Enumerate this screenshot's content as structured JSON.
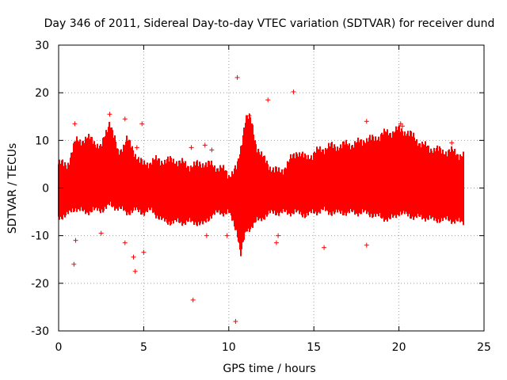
{
  "chart_data": {
    "type": "scatter",
    "title": "Day 346 of 2011, Sidereal Day-to-day VTEC variation (SDTVAR) for receiver dund",
    "xlabel": "GPS time / hours",
    "ylabel": "SDTVAR / TECUs",
    "xlim": [
      0,
      25
    ],
    "ylim": [
      -30,
      30
    ],
    "xticks": [
      "0",
      "5",
      "10",
      "15",
      "20",
      "25"
    ],
    "yticks": [
      "-30",
      "-20",
      "-10",
      "0",
      "10",
      "20",
      "30"
    ],
    "xtick_values": [
      0,
      5,
      10,
      15,
      20,
      25
    ],
    "ytick_values": [
      -30,
      -20,
      -10,
      0,
      10,
      20,
      30
    ],
    "grid": true,
    "marker": "+",
    "color": "#ff0000",
    "envelope": {
      "x": [
        0.0,
        0.5,
        1.0,
        1.5,
        2.0,
        2.5,
        3.0,
        3.5,
        4.0,
        4.5,
        5.0,
        5.5,
        6.0,
        6.5,
        7.0,
        7.5,
        8.0,
        8.5,
        9.0,
        9.5,
        10.0,
        10.5,
        10.7,
        11.0,
        11.3,
        11.6,
        12.0,
        12.5,
        13.0,
        13.5,
        14.0,
        14.5,
        15.0,
        15.5,
        16.0,
        16.5,
        17.0,
        17.5,
        18.0,
        18.5,
        19.0,
        19.5,
        20.0,
        20.5,
        21.0,
        21.5,
        22.0,
        22.5,
        23.0,
        23.5,
        23.8
      ],
      "upper": [
        5,
        4.5,
        9.5,
        10,
        10,
        8,
        14,
        7,
        10,
        7,
        4.5,
        5.5,
        5.5,
        5.5,
        5.5,
        4.5,
        4.5,
        5,
        4.5,
        4,
        2.5,
        4,
        8,
        15,
        14,
        9,
        6,
        4,
        3,
        5,
        7.5,
        6,
        7,
        8,
        8.5,
        8.5,
        9,
        9,
        10,
        10,
        11,
        11.5,
        12,
        11.5,
        10,
        8.5,
        8,
        7.5,
        7.5,
        7,
        6.5
      ],
      "lower": [
        -6,
        -5.5,
        -4,
        -5,
        -4.5,
        -4.5,
        -3.5,
        -4,
        -5,
        -4.5,
        -5,
        -4.5,
        -6.5,
        -7,
        -7,
        -7,
        -7,
        -7.5,
        -5.5,
        -5,
        -5,
        -9,
        -14,
        -9,
        -8,
        -7,
        -6,
        -5,
        -5,
        -5,
        -5,
        -5.5,
        -5,
        -4.5,
        -5,
        -5,
        -5,
        -5,
        -5,
        -5.5,
        -6,
        -6.5,
        -5,
        -5.5,
        -6,
        -6,
        -6.5,
        -6.5,
        -6.5,
        -7,
        -7
      ]
    },
    "outliers": [
      {
        "x": 0.9,
        "y": -16
      },
      {
        "x": 0.95,
        "y": 13.5
      },
      {
        "x": 1.0,
        "y": -11
      },
      {
        "x": 2.5,
        "y": -9.5
      },
      {
        "x": 3.0,
        "y": 15.5
      },
      {
        "x": 3.9,
        "y": 14.5
      },
      {
        "x": 3.9,
        "y": -11.5
      },
      {
        "x": 4.4,
        "y": -14.5
      },
      {
        "x": 4.5,
        "y": -17.5
      },
      {
        "x": 4.6,
        "y": 8.5
      },
      {
        "x": 4.9,
        "y": 13.5
      },
      {
        "x": 5.0,
        "y": -13.5
      },
      {
        "x": 7.9,
        "y": -23.5
      },
      {
        "x": 7.8,
        "y": 8.5
      },
      {
        "x": 8.6,
        "y": 9
      },
      {
        "x": 8.7,
        "y": -10
      },
      {
        "x": 9.0,
        "y": 8
      },
      {
        "x": 9.9,
        "y": -10
      },
      {
        "x": 10.5,
        "y": 23.2
      },
      {
        "x": 10.4,
        "y": -28
      },
      {
        "x": 11.2,
        "y": 15.2
      },
      {
        "x": 12.3,
        "y": 18.5
      },
      {
        "x": 12.9,
        "y": -10
      },
      {
        "x": 12.8,
        "y": -11.5
      },
      {
        "x": 13.8,
        "y": 20.2
      },
      {
        "x": 15.6,
        "y": -12.5
      },
      {
        "x": 18.1,
        "y": 14
      },
      {
        "x": 18.1,
        "y": -12
      },
      {
        "x": 20.1,
        "y": 13.5
      },
      {
        "x": 20.2,
        "y": 13
      },
      {
        "x": 23.1,
        "y": 9.5
      }
    ]
  }
}
